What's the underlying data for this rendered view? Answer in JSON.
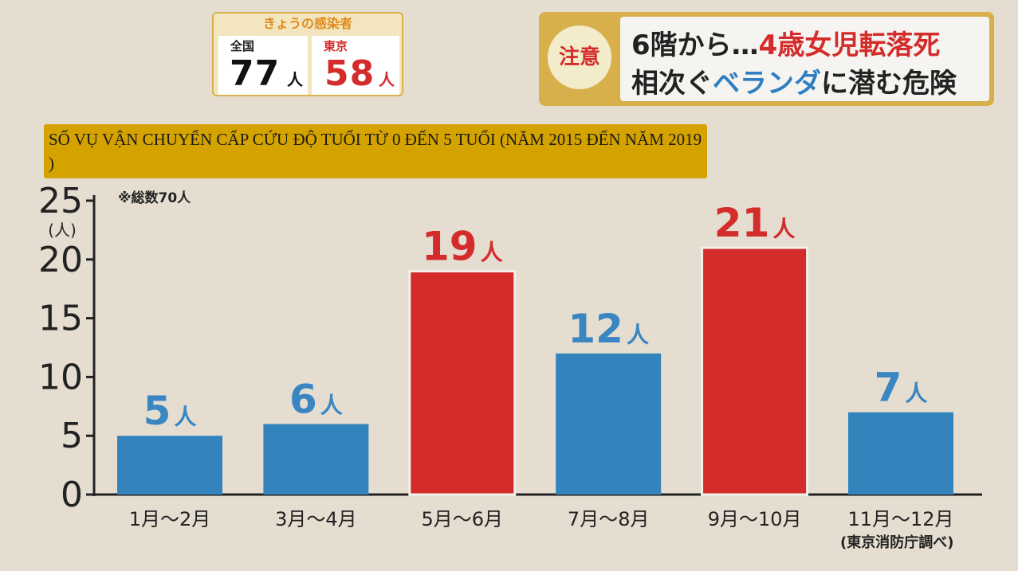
{
  "infection": {
    "title": "きょうの感染者",
    "national_label": "全国",
    "national_value": "77",
    "tokyo_label": "東京",
    "tokyo_value": "58",
    "unit": "人"
  },
  "headline": {
    "caution": "注意",
    "line1_black": "6階から…",
    "line1_red": "4歳女児転落死",
    "line2_black1": "相次ぐ",
    "line2_blue": "ベランダ",
    "line2_black2": "に潜む危険"
  },
  "banner_text": "SỐ VỤ VẬN CHUYỂN CẤP CỨU ĐỘ TUỔI TỪ 0 ĐẾN 5 TUỔI (NĂM 2015 ĐẾN NĂM 2019 )",
  "total_note": "※総数70人",
  "source_note": "(東京消防庁調べ)",
  "colors": {
    "blue": "#3384bd",
    "red": "#d42b2b",
    "label_blue": "#3a86c2",
    "label_red": "#d42b2b",
    "axis": "#222222"
  },
  "chart_data": {
    "type": "bar",
    "categories": [
      "1月～2月",
      "3月～4月",
      "5月～6月",
      "7月～8月",
      "9月～10月",
      "11月～12月"
    ],
    "values": [
      5,
      6,
      19,
      12,
      21,
      7
    ],
    "highlight": [
      false,
      false,
      true,
      false,
      true,
      false
    ],
    "data_labels": [
      "5人",
      "6人",
      "19人",
      "12人",
      "21人",
      "7人"
    ],
    "ylim": [
      0,
      25
    ],
    "yticks": [
      "0",
      "5",
      "10",
      "15",
      "20",
      "25"
    ],
    "ylabel": "(人)",
    "grid": false
  }
}
